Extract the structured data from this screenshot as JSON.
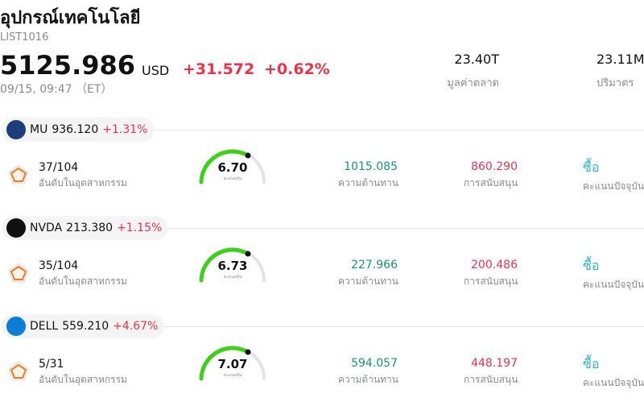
{
  "header": {
    "title": "อุปกรณ์เทคโนโลยี",
    "code": "LIST1016",
    "price": "5125.986",
    "currency": "USD",
    "change": "+31.572",
    "change_pct": "+0.62%",
    "time": "09/15, 09:47 （ET）",
    "stats": [
      {
        "value": "23.40T",
        "label": "มูลค่าตลาด"
      },
      {
        "value": "23.11M",
        "label": "ปริมาตร"
      }
    ]
  },
  "stocks": [
    {
      "ticker": "MU",
      "price": "936.120",
      "change_pct": "+1.31%",
      "rank": "37/104",
      "rank_label": "อันดับในอุตสาหกรรม",
      "score": "6.70",
      "score_label": "คะแนนหุ้น",
      "resistance": "1015.085",
      "resistance_label": "ความต้านทาน",
      "support": "860.290",
      "support_label": "การสนับสนุน",
      "signal": "ซื้อ",
      "signal_label": "คะแนนปัจจุบัน"
    },
    {
      "ticker": "NVDA",
      "price": "213.380",
      "change_pct": "+1.15%",
      "rank": "35/104",
      "rank_label": "อันดับในอุตสาหกรรม",
      "score": "6.73",
      "score_label": "คะแนนหุ้น",
      "resistance": "227.966",
      "resistance_label": "ความต้านทาน",
      "support": "200.486",
      "support_label": "การสนับสนุน",
      "signal": "ซื้อ",
      "signal_label": "คะแนนปัจจุบัน"
    },
    {
      "ticker": "DELL",
      "price": "559.210",
      "change_pct": "+4.67%",
      "rank": "5/31",
      "rank_label": "อันดับในอุตสาหกรรม",
      "score": "7.07",
      "score_label": "คะแนนหุ้น",
      "resistance": "594.057",
      "resistance_label": "ความต้านทาน",
      "support": "448.197",
      "support_label": "การสนับสนุน",
      "signal": "ซื้อ",
      "signal_label": "คะแนนปัจจุบัน"
    }
  ]
}
